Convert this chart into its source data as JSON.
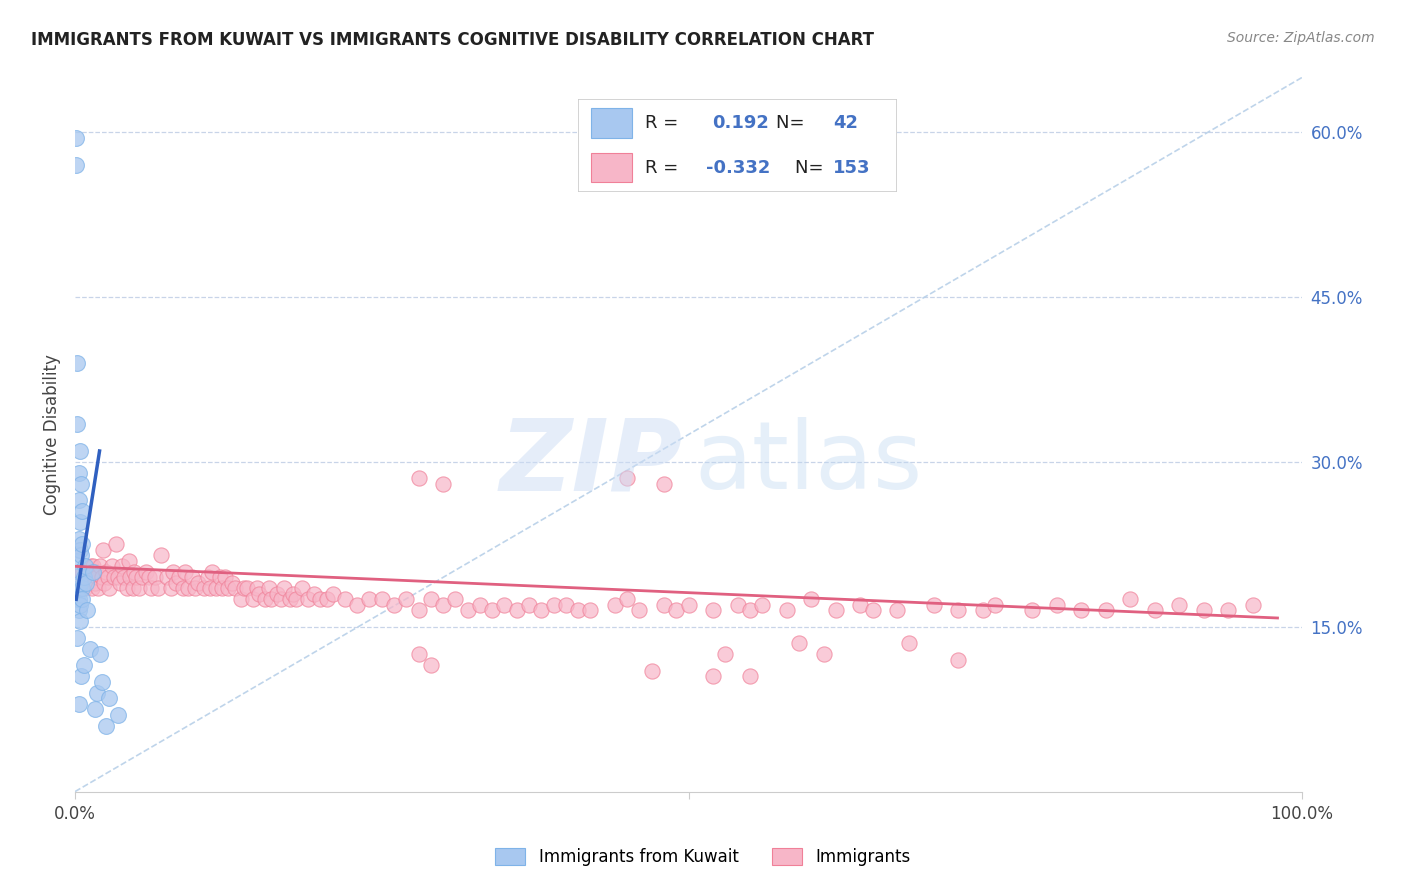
{
  "title": "IMMIGRANTS FROM KUWAIT VS IMMIGRANTS COGNITIVE DISABILITY CORRELATION CHART",
  "source": "Source: ZipAtlas.com",
  "ylabel": "Cognitive Disability",
  "xlim": [
    0,
    1.0
  ],
  "ylim": [
    0,
    0.65
  ],
  "y_ticks_right": [
    0.15,
    0.3,
    0.45,
    0.6
  ],
  "y_tick_labels_right": [
    "15.0%",
    "30.0%",
    "45.0%",
    "60.0%"
  ],
  "color_blue": "#a8c8f0",
  "color_blue_edge": "#7fb3e8",
  "color_pink": "#f7b6c8",
  "color_pink_edge": "#f08098",
  "color_blue_line": "#3060c0",
  "color_pink_line": "#e06080",
  "color_blue_text": "#4472c4",
  "color_diag": "#b8d0e8",
  "blue_points_x": [
    0.001,
    0.001,
    0.002,
    0.002,
    0.002,
    0.002,
    0.002,
    0.003,
    0.003,
    0.003,
    0.003,
    0.003,
    0.003,
    0.003,
    0.003,
    0.004,
    0.004,
    0.004,
    0.004,
    0.004,
    0.004,
    0.005,
    0.005,
    0.005,
    0.006,
    0.006,
    0.006,
    0.006,
    0.007,
    0.007,
    0.008,
    0.009,
    0.01,
    0.012,
    0.015,
    0.016,
    0.018,
    0.02,
    0.022,
    0.025,
    0.028,
    0.035
  ],
  "blue_points_y": [
    0.595,
    0.57,
    0.39,
    0.335,
    0.21,
    0.175,
    0.14,
    0.29,
    0.265,
    0.23,
    0.2,
    0.185,
    0.175,
    0.165,
    0.08,
    0.31,
    0.245,
    0.22,
    0.19,
    0.17,
    0.155,
    0.28,
    0.215,
    0.105,
    0.255,
    0.225,
    0.185,
    0.175,
    0.195,
    0.115,
    0.205,
    0.19,
    0.165,
    0.13,
    0.2,
    0.075,
    0.09,
    0.125,
    0.1,
    0.06,
    0.085,
    0.07
  ],
  "pink_points_x": [
    0.002,
    0.003,
    0.004,
    0.005,
    0.006,
    0.007,
    0.008,
    0.009,
    0.01,
    0.011,
    0.012,
    0.013,
    0.014,
    0.015,
    0.016,
    0.017,
    0.018,
    0.019,
    0.02,
    0.022,
    0.023,
    0.024,
    0.025,
    0.027,
    0.028,
    0.03,
    0.032,
    0.033,
    0.035,
    0.037,
    0.038,
    0.04,
    0.042,
    0.044,
    0.045,
    0.047,
    0.048,
    0.05,
    0.052,
    0.055,
    0.058,
    0.06,
    0.062,
    0.065,
    0.068,
    0.07,
    0.075,
    0.078,
    0.08,
    0.082,
    0.085,
    0.088,
    0.09,
    0.092,
    0.095,
    0.098,
    0.1,
    0.105,
    0.108,
    0.11,
    0.112,
    0.115,
    0.118,
    0.12,
    0.122,
    0.125,
    0.128,
    0.13,
    0.135,
    0.138,
    0.14,
    0.145,
    0.148,
    0.15,
    0.155,
    0.158,
    0.16,
    0.165,
    0.168,
    0.17,
    0.175,
    0.178,
    0.18,
    0.185,
    0.19,
    0.195,
    0.2,
    0.205,
    0.21,
    0.22,
    0.23,
    0.24,
    0.25,
    0.26,
    0.27,
    0.28,
    0.29,
    0.3,
    0.31,
    0.32,
    0.33,
    0.34,
    0.35,
    0.36,
    0.37,
    0.38,
    0.39,
    0.4,
    0.41,
    0.42,
    0.44,
    0.45,
    0.46,
    0.48,
    0.49,
    0.5,
    0.52,
    0.54,
    0.55,
    0.56,
    0.58,
    0.6,
    0.62,
    0.64,
    0.65,
    0.67,
    0.7,
    0.72,
    0.74,
    0.75,
    0.78,
    0.8,
    0.82,
    0.84,
    0.86,
    0.88,
    0.9,
    0.92,
    0.94,
    0.96,
    0.45,
    0.48,
    0.28,
    0.3,
    0.47,
    0.52,
    0.53,
    0.55,
    0.68,
    0.72,
    0.28,
    0.29,
    0.59,
    0.61
  ],
  "pink_points_y": [
    0.22,
    0.2,
    0.195,
    0.185,
    0.2,
    0.195,
    0.185,
    0.195,
    0.2,
    0.19,
    0.195,
    0.205,
    0.185,
    0.205,
    0.19,
    0.2,
    0.195,
    0.185,
    0.205,
    0.195,
    0.22,
    0.19,
    0.2,
    0.195,
    0.185,
    0.205,
    0.195,
    0.225,
    0.195,
    0.19,
    0.205,
    0.195,
    0.185,
    0.21,
    0.195,
    0.185,
    0.2,
    0.195,
    0.185,
    0.195,
    0.2,
    0.195,
    0.185,
    0.195,
    0.185,
    0.215,
    0.195,
    0.185,
    0.2,
    0.19,
    0.195,
    0.185,
    0.2,
    0.185,
    0.195,
    0.185,
    0.19,
    0.185,
    0.195,
    0.185,
    0.2,
    0.185,
    0.195,
    0.185,
    0.195,
    0.185,
    0.19,
    0.185,
    0.175,
    0.185,
    0.185,
    0.175,
    0.185,
    0.18,
    0.175,
    0.185,
    0.175,
    0.18,
    0.175,
    0.185,
    0.175,
    0.18,
    0.175,
    0.185,
    0.175,
    0.18,
    0.175,
    0.175,
    0.18,
    0.175,
    0.17,
    0.175,
    0.175,
    0.17,
    0.175,
    0.165,
    0.175,
    0.17,
    0.175,
    0.165,
    0.17,
    0.165,
    0.17,
    0.165,
    0.17,
    0.165,
    0.17,
    0.17,
    0.165,
    0.165,
    0.17,
    0.175,
    0.165,
    0.17,
    0.165,
    0.17,
    0.165,
    0.17,
    0.165,
    0.17,
    0.165,
    0.175,
    0.165,
    0.17,
    0.165,
    0.165,
    0.17,
    0.165,
    0.165,
    0.17,
    0.165,
    0.17,
    0.165,
    0.165,
    0.175,
    0.165,
    0.17,
    0.165,
    0.165,
    0.17,
    0.285,
    0.28,
    0.285,
    0.28,
    0.11,
    0.105,
    0.125,
    0.105,
    0.135,
    0.12,
    0.125,
    0.115,
    0.135,
    0.125
  ],
  "blue_line_x": [
    0.001,
    0.02
  ],
  "blue_line_y": [
    0.175,
    0.31
  ],
  "pink_line_x": [
    0.001,
    0.98
  ],
  "pink_line_y": [
    0.205,
    0.158
  ],
  "diag_line_x": [
    0.0,
    1.0
  ],
  "diag_line_y": [
    0.0,
    0.65
  ]
}
